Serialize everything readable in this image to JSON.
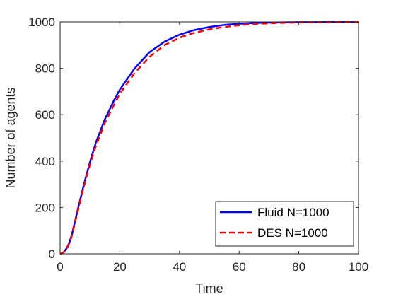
{
  "chart_data": {
    "type": "line",
    "title": "",
    "xlabel": "Time",
    "ylabel": "Number of agents",
    "xlim": [
      0,
      100
    ],
    "ylim": [
      0,
      1000
    ],
    "xticks": [
      0,
      20,
      40,
      60,
      80,
      100
    ],
    "yticks": [
      0,
      200,
      400,
      600,
      800,
      1000
    ],
    "grid": false,
    "legend_position": "bottom-right",
    "series": [
      {
        "name": "Fluid N=1000",
        "color": "#0000ff",
        "style": "solid",
        "x": [
          0,
          1,
          2,
          3,
          4,
          5,
          6,
          8,
          10,
          12,
          15,
          18,
          20,
          25,
          30,
          35,
          40,
          45,
          50,
          55,
          60,
          65,
          70,
          75,
          80,
          85,
          90,
          95,
          100
        ],
        "y": [
          0,
          5,
          20,
          45,
          85,
          140,
          195,
          300,
          395,
          480,
          580,
          660,
          708,
          800,
          870,
          915,
          945,
          965,
          978,
          987,
          992,
          995,
          997,
          998,
          999,
          999,
          1000,
          1000,
          1000
        ]
      },
      {
        "name": "DES N=1000",
        "color": "#ff0000",
        "style": "dashed",
        "x": [
          0,
          1,
          2,
          3,
          4,
          5,
          6,
          8,
          10,
          12,
          15,
          18,
          20,
          25,
          30,
          35,
          40,
          45,
          50,
          55,
          60,
          65,
          70,
          75,
          80,
          85,
          90,
          95,
          100
        ],
        "y": [
          0,
          4,
          18,
          42,
          80,
          135,
          188,
          292,
          385,
          465,
          565,
          640,
          690,
          780,
          850,
          900,
          932,
          953,
          968,
          978,
          986,
          991,
          994,
          996,
          998,
          999,
          999,
          1000,
          1000
        ]
      }
    ]
  }
}
